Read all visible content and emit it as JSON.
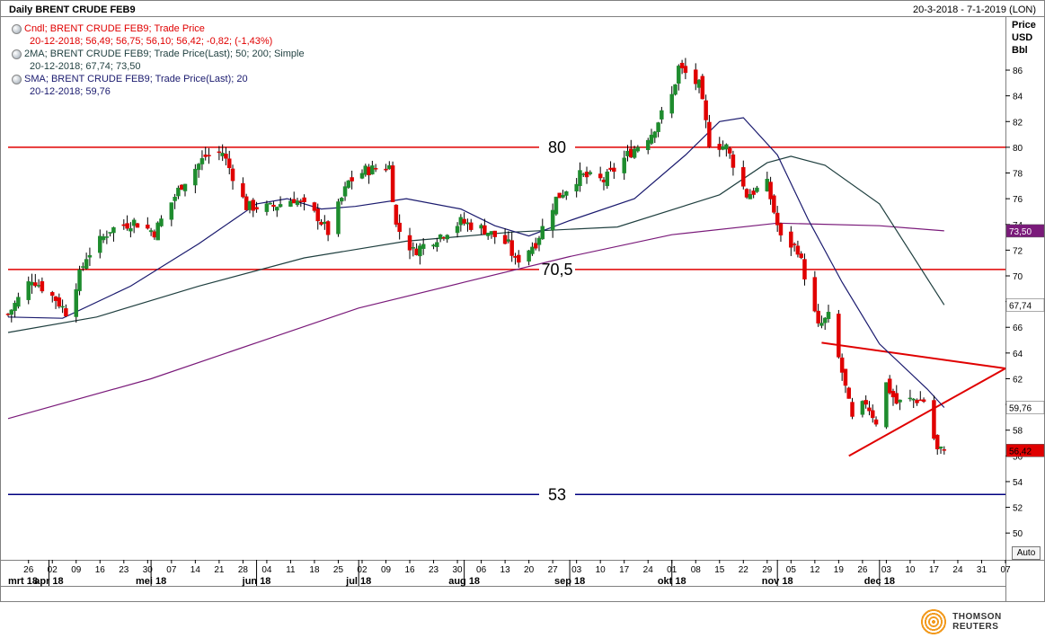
{
  "header": {
    "title": "Daily BRENT CRUDE FEB9",
    "date_range": "20-3-2018 - 7-1-2019 (LON)"
  },
  "legend": [
    {
      "label": "Cndl; BRENT CRUDE FEB9; Trade Price",
      "sub": "20-12-2018; 56,49; 56,75; 56,10; 56,42; -0,82; (-1,43%)",
      "color": "#e00000"
    },
    {
      "label": "2MA; BRENT CRUDE FEB9; Trade Price(Last);  50; 200; Simple",
      "sub": "20-12-2018; 67,74; 73,50",
      "color": "#1f3f3f"
    },
    {
      "label": "SMA; BRENT CRUDE FEB9; Trade Price(Last);  20",
      "sub": "20-12-2018; 59,76",
      "color": "#1a1a6e"
    }
  ],
  "axis_title": [
    "Price",
    "USD",
    "Bbl"
  ],
  "auto_label": "Auto",
  "brand": "THOMSON REUTERS",
  "colors": {
    "up": "#1e8c2e",
    "down": "#e00000",
    "ma50": "#1f3f3f",
    "ma200": "#7a1a7a",
    "sma20": "#1a1a6e",
    "hline": "#e00000",
    "support": "#000080",
    "grid": "#dddddd"
  },
  "chart_data": {
    "type": "candlestick",
    "title": "Daily BRENT CRUDE FEB9",
    "ylabel": "Price USD Bbl",
    "ylim": [
      49,
      89
    ],
    "y_ticks": [
      50,
      52,
      54,
      56,
      58,
      60,
      62,
      64,
      66,
      68,
      70,
      72,
      74,
      76,
      78,
      80,
      82,
      84,
      86
    ],
    "x_range": [
      "2018-03-20",
      "2019-01-07"
    ],
    "x_ticks": [
      {
        "date": "2018-03-26",
        "label": "26"
      },
      {
        "date": "2018-04-02",
        "label": "02"
      },
      {
        "date": "2018-04-09",
        "label": "09"
      },
      {
        "date": "2018-04-16",
        "label": "16"
      },
      {
        "date": "2018-04-23",
        "label": "23"
      },
      {
        "date": "2018-04-30",
        "label": "30"
      },
      {
        "date": "2018-05-07",
        "label": "07"
      },
      {
        "date": "2018-05-14",
        "label": "14"
      },
      {
        "date": "2018-05-21",
        "label": "21"
      },
      {
        "date": "2018-05-28",
        "label": "28"
      },
      {
        "date": "2018-06-04",
        "label": "04"
      },
      {
        "date": "2018-06-11",
        "label": "11"
      },
      {
        "date": "2018-06-18",
        "label": "18"
      },
      {
        "date": "2018-06-25",
        "label": "25"
      },
      {
        "date": "2018-07-02",
        "label": "02"
      },
      {
        "date": "2018-07-09",
        "label": "09"
      },
      {
        "date": "2018-07-16",
        "label": "16"
      },
      {
        "date": "2018-07-23",
        "label": "23"
      },
      {
        "date": "2018-07-30",
        "label": "30"
      },
      {
        "date": "2018-08-06",
        "label": "06"
      },
      {
        "date": "2018-08-13",
        "label": "13"
      },
      {
        "date": "2018-08-20",
        "label": "20"
      },
      {
        "date": "2018-08-27",
        "label": "27"
      },
      {
        "date": "2018-09-03",
        "label": "03"
      },
      {
        "date": "2018-09-10",
        "label": "10"
      },
      {
        "date": "2018-09-17",
        "label": "17"
      },
      {
        "date": "2018-09-24",
        "label": "24"
      },
      {
        "date": "2018-10-01",
        "label": "01"
      },
      {
        "date": "2018-10-08",
        "label": "08"
      },
      {
        "date": "2018-10-15",
        "label": "15"
      },
      {
        "date": "2018-10-22",
        "label": "22"
      },
      {
        "date": "2018-10-29",
        "label": "29"
      },
      {
        "date": "2018-11-05",
        "label": "05"
      },
      {
        "date": "2018-11-12",
        "label": "12"
      },
      {
        "date": "2018-11-19",
        "label": "19"
      },
      {
        "date": "2018-11-26",
        "label": "26"
      },
      {
        "date": "2018-12-03",
        "label": "03"
      },
      {
        "date": "2018-12-10",
        "label": "10"
      },
      {
        "date": "2018-12-17",
        "label": "17"
      },
      {
        "date": "2018-12-24",
        "label": "24"
      },
      {
        "date": "2018-12-31",
        "label": "31"
      },
      {
        "date": "2019-01-07",
        "label": "07"
      }
    ],
    "months": [
      {
        "label": "mrt 18",
        "date": "2018-03-20"
      },
      {
        "label": "apr 18",
        "date": "2018-04-01"
      },
      {
        "label": "mei 18",
        "date": "2018-05-01"
      },
      {
        "label": "jun 18",
        "date": "2018-06-01"
      },
      {
        "label": "jul 18",
        "date": "2018-07-01"
      },
      {
        "label": "aug 18",
        "date": "2018-08-01"
      },
      {
        "label": "sep 18",
        "date": "2018-09-01"
      },
      {
        "label": "okt 18",
        "date": "2018-10-01"
      },
      {
        "label": "nov 18",
        "date": "2018-11-01"
      },
      {
        "label": "dec 18",
        "date": "2018-12-01"
      }
    ],
    "close_path": [
      [
        "2018-03-20",
        67.0
      ],
      [
        "2018-03-27",
        69.8
      ],
      [
        "2018-04-03",
        68.2
      ],
      [
        "2018-04-06",
        67.2
      ],
      [
        "2018-04-12",
        71.5
      ],
      [
        "2018-04-19",
        73.6
      ],
      [
        "2018-04-26",
        74.2
      ],
      [
        "2018-05-02",
        73.4
      ],
      [
        "2018-05-10",
        77.1
      ],
      [
        "2018-05-17",
        79.3
      ],
      [
        "2018-05-22",
        79.6
      ],
      [
        "2018-05-29",
        75.4
      ],
      [
        "2018-06-05",
        75.3
      ],
      [
        "2018-06-12",
        76.0
      ],
      [
        "2018-06-19",
        74.6
      ],
      [
        "2018-06-22",
        73.4
      ],
      [
        "2018-06-28",
        77.3
      ],
      [
        "2018-07-03",
        78.2
      ],
      [
        "2018-07-10",
        78.5
      ],
      [
        "2018-07-12",
        73.9
      ],
      [
        "2018-07-17",
        71.9
      ],
      [
        "2018-07-24",
        73.0
      ],
      [
        "2018-07-31",
        74.2
      ],
      [
        "2018-08-07",
        73.6
      ],
      [
        "2018-08-14",
        72.4
      ],
      [
        "2018-08-16",
        71.1
      ],
      [
        "2018-08-22",
        72.6
      ],
      [
        "2018-08-28",
        76.0
      ],
      [
        "2018-09-04",
        77.8
      ],
      [
        "2018-09-11",
        77.4
      ],
      [
        "2018-09-18",
        79.4
      ],
      [
        "2018-09-25",
        81.1
      ],
      [
        "2018-10-01",
        84.0
      ],
      [
        "2018-10-03",
        86.2
      ],
      [
        "2018-10-09",
        84.8
      ],
      [
        "2018-10-12",
        80.4
      ],
      [
        "2018-10-17",
        80.0
      ],
      [
        "2018-10-23",
        76.3
      ],
      [
        "2018-10-29",
        77.1
      ],
      [
        "2018-11-02",
        72.9
      ],
      [
        "2018-11-07",
        72.1
      ],
      [
        "2018-11-13",
        66.0
      ],
      [
        "2018-11-16",
        66.8
      ],
      [
        "2018-11-20",
        62.5
      ],
      [
        "2018-11-23",
        58.8
      ],
      [
        "2018-11-27",
        60.2
      ],
      [
        "2018-11-30",
        58.7
      ],
      [
        "2018-12-03",
        61.6
      ],
      [
        "2018-12-06",
        60.1
      ],
      [
        "2018-12-11",
        60.4
      ],
      [
        "2018-12-14",
        60.3
      ],
      [
        "2018-12-18",
        56.4
      ],
      [
        "2018-12-20",
        56.42
      ]
    ],
    "last_candle": {
      "date": "2018-12-20",
      "open": 56.49,
      "high": 56.75,
      "low": 56.1,
      "close": 56.42
    },
    "ma50": [
      [
        "2018-03-20",
        66.8
      ],
      [
        "2018-04-05",
        66.7
      ],
      [
        "2018-04-25",
        69.2
      ],
      [
        "2018-05-15",
        72.5
      ],
      [
        "2018-06-01",
        75.6
      ],
      [
        "2018-06-10",
        76.0
      ],
      [
        "2018-06-20",
        75.2
      ],
      [
        "2018-06-30",
        75.4
      ],
      [
        "2018-07-15",
        76.0
      ],
      [
        "2018-07-31",
        75.2
      ],
      [
        "2018-08-10",
        73.9
      ],
      [
        "2018-08-20",
        73.1
      ],
      [
        "2018-09-01",
        74.3
      ],
      [
        "2018-09-20",
        76.0
      ],
      [
        "2018-10-05",
        79.4
      ],
      [
        "2018-10-15",
        82.0
      ],
      [
        "2018-10-22",
        82.3
      ],
      [
        "2018-11-01",
        79.4
      ],
      [
        "2018-11-10",
        74.4
      ],
      [
        "2018-11-20",
        69.5
      ],
      [
        "2018-12-01",
        64.7
      ],
      [
        "2018-12-15",
        61.2
      ],
      [
        "2018-12-20",
        59.76
      ]
    ],
    "ma200": [
      [
        "2018-03-20",
        65.6
      ],
      [
        "2018-04-15",
        66.8
      ],
      [
        "2018-05-15",
        69.2
      ],
      [
        "2018-06-15",
        71.4
      ],
      [
        "2018-07-15",
        72.7
      ],
      [
        "2018-08-15",
        73.4
      ],
      [
        "2018-09-15",
        73.8
      ],
      [
        "2018-10-15",
        76.3
      ],
      [
        "2018-10-29",
        78.8
      ],
      [
        "2018-11-05",
        79.3
      ],
      [
        "2018-11-15",
        78.6
      ],
      [
        "2018-12-01",
        75.6
      ],
      [
        "2018-12-20",
        67.74
      ]
    ],
    "sma200": [
      [
        "2018-03-20",
        58.9
      ],
      [
        "2018-05-01",
        62.0
      ],
      [
        "2018-06-01",
        64.8
      ],
      [
        "2018-07-01",
        67.5
      ],
      [
        "2018-08-01",
        69.5
      ],
      [
        "2018-09-01",
        71.5
      ],
      [
        "2018-10-01",
        73.2
      ],
      [
        "2018-11-01",
        74.1
      ],
      [
        "2018-12-01",
        73.9
      ],
      [
        "2018-12-20",
        73.5
      ]
    ],
    "horizontal_lines": [
      {
        "value": 80,
        "label": "80",
        "color": "#e00000"
      },
      {
        "value": 70.5,
        "label": "70,5",
        "color": "#e00000"
      },
      {
        "value": 53,
        "label": "53",
        "color": "#000080"
      }
    ],
    "trendlines": [
      {
        "from": [
          "2018-11-14",
          64.8
        ],
        "to": [
          "2019-01-07",
          62.8
        ]
      },
      {
        "from": [
          "2018-11-22",
          56.0
        ],
        "to": [
          "2019-01-07",
          62.8
        ]
      }
    ],
    "value_badges": [
      {
        "value": 73.5,
        "label": "73,50",
        "bg": "#7a1a7a",
        "fg": "#ffffff"
      },
      {
        "value": 67.74,
        "label": "67,74",
        "bg": "#ffffff",
        "fg": "#000000"
      },
      {
        "value": 59.76,
        "label": "59,76",
        "bg": "#ffffff",
        "fg": "#000000"
      },
      {
        "value": 56.42,
        "label": "56,42",
        "bg": "#e00000",
        "fg": "#000000"
      }
    ]
  }
}
